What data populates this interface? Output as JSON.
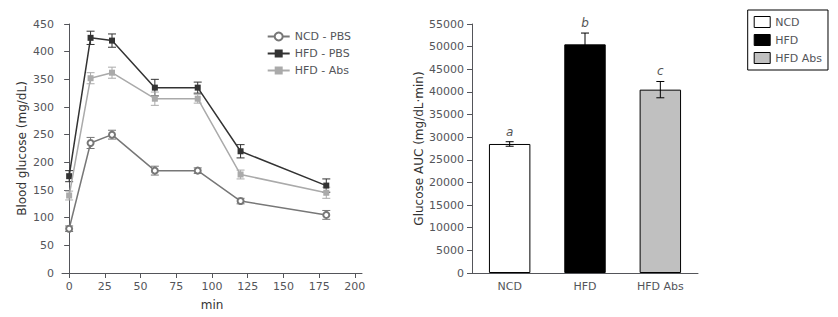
{
  "chart_data": [
    {
      "type": "line",
      "x": [
        0,
        15,
        30,
        60,
        90,
        120,
        180
      ],
      "xlabel": "min",
      "ylabel": "Blood glucose (mg/dL)",
      "xlim": [
        -5,
        205
      ],
      "xticks": [
        0,
        25,
        50,
        75,
        100,
        125,
        150,
        175,
        200
      ],
      "ylim": [
        0,
        450
      ],
      "yticks": [
        0,
        50,
        100,
        150,
        200,
        250,
        300,
        350,
        400,
        450
      ],
      "grid": false,
      "legend": "upper right",
      "series": [
        {
          "name": "NCD - PBS",
          "color": "#777777",
          "marker": "open_circle",
          "values": [
            80,
            235,
            250,
            185,
            185,
            130,
            105
          ],
          "errors": [
            5,
            10,
            8,
            8,
            5,
            5,
            8
          ]
        },
        {
          "name": "HFD - PBS",
          "color": "#333333",
          "marker": "square",
          "values": [
            175,
            425,
            420,
            335,
            335,
            220,
            158
          ],
          "errors": [
            10,
            12,
            12,
            15,
            10,
            12,
            12
          ]
        },
        {
          "name": "HFD - Abs",
          "color": "#aaaaaa",
          "marker": "square",
          "values": [
            140,
            352,
            362,
            315,
            315,
            178,
            145
          ],
          "errors": [
            8,
            10,
            10,
            12,
            8,
            8,
            10
          ]
        }
      ]
    },
    {
      "type": "bar",
      "categories": [
        "NCD",
        "HFD",
        "HFD Abs"
      ],
      "values": [
        28500,
        50500,
        40500
      ],
      "errors": [
        500,
        2500,
        1800
      ],
      "colors": [
        "white",
        "black",
        "#c0c0c0"
      ],
      "ylabel": "Glucose AUC (mg/dL·min)",
      "ylim": [
        0,
        55000
      ],
      "yticks": [
        0,
        5000,
        10000,
        15000,
        20000,
        25000,
        30000,
        35000,
        40000,
        45000,
        50000,
        55000
      ],
      "grid": false,
      "legend": "upper right",
      "annotations": [
        {
          "category": "NCD",
          "text": "a"
        },
        {
          "category": "HFD",
          "text": "b"
        },
        {
          "category": "HFD Abs",
          "text": "c"
        }
      ]
    }
  ]
}
